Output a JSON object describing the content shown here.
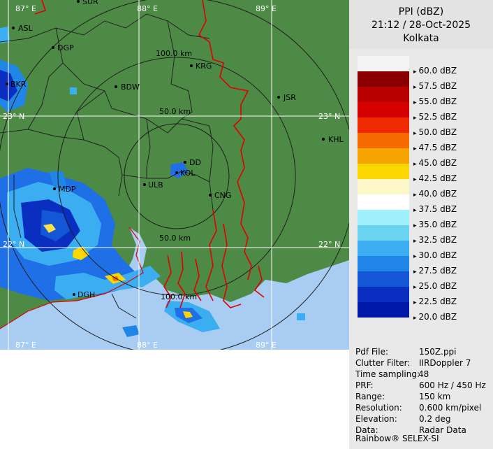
{
  "header": {
    "title": "PPI (dBZ)",
    "datetime": "21:12 / 28-Oct-2025",
    "station": "Kolkata"
  },
  "legend": {
    "levels": [
      "60.0 dBZ",
      "57.5 dBZ",
      "55.0 dBZ",
      "52.5 dBZ",
      "50.0 dBZ",
      "47.5 dBZ",
      "45.0 dBZ",
      "42.5 dBZ",
      "40.0 dBZ",
      "37.5 dBZ",
      "35.0 dBZ",
      "32.5 dBZ",
      "30.0 dBZ",
      "27.5 dBZ",
      "25.0 dBZ",
      "22.5 dBZ",
      "20.0 dBZ"
    ],
    "colors": [
      "#f4f4f4",
      "#8a0000",
      "#b80000",
      "#d70000",
      "#ef2a00",
      "#f56b00",
      "#f8a400",
      "#fbd600",
      "#fbf7c9",
      "#ffffff",
      "#9ff0fa",
      "#6ad3f2",
      "#3aaef0",
      "#1f86e8",
      "#1457d6",
      "#0a2fc0",
      "#0018a8"
    ]
  },
  "map": {
    "lat_labels": [
      "23° N",
      "23° N",
      "22° N",
      "22° N"
    ],
    "lon_labels": [
      "87° E",
      "88° E",
      "89° E",
      "87° E",
      "88° E",
      "89° E"
    ],
    "range_labels": [
      "100.0 km",
      "50.0 km",
      "50.0 km",
      "100.0 km"
    ],
    "places": [
      "ASL",
      "DGP",
      "BDW",
      "KRG",
      "JSR",
      "KHL",
      "DD",
      "KOL",
      "ULB",
      "CNG",
      "MDP",
      "DGH",
      "SUR",
      "BKR"
    ],
    "colors": {
      "land": "#4d8a46",
      "sea": "#a9cdf2",
      "border": "#e00000",
      "district": "#222222",
      "ring": "#1e1e1e",
      "grid": "#ffffff"
    }
  },
  "info": {
    "rows": [
      {
        "key": "Pdf File:",
        "value": "150Z.ppi"
      },
      {
        "key": "Clutter Filter:",
        "value": "IIRDoppler 7"
      },
      {
        "key": "Time sampling:",
        "value": "48"
      },
      {
        "key": "PRF:",
        "value": "600 Hz / 450 Hz"
      },
      {
        "key": "Range:",
        "value": "150 km"
      },
      {
        "key": "Resolution:",
        "value": "0.600 km/pixel"
      },
      {
        "key": "Elevation:",
        "value": "0.2 deg"
      },
      {
        "key": "Data:",
        "value": "Radar Data"
      }
    ],
    "footer": "Rainbow® SELEX-SI"
  }
}
